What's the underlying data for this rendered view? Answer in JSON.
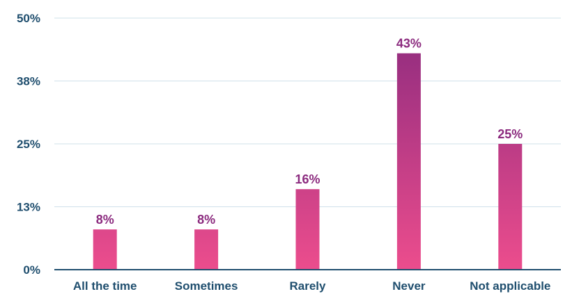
{
  "chart_data": {
    "type": "bar",
    "title": "",
    "xlabel": "",
    "ylabel": "",
    "categories": [
      "All the time",
      "Sometimes",
      "Rarely",
      "Never",
      "Not applicable"
    ],
    "values": [
      8,
      8,
      16,
      43,
      25
    ],
    "data_labels": [
      "8%",
      "8%",
      "16%",
      "43%",
      "25%"
    ],
    "y_ticks": [
      {
        "value": 0,
        "label": "0%"
      },
      {
        "value": 12.5,
        "label": "13%"
      },
      {
        "value": 25,
        "label": "25%"
      },
      {
        "value": 37.5,
        "label": "38%"
      },
      {
        "value": 50,
        "label": "50%"
      }
    ],
    "ylim": [
      0,
      50
    ],
    "grid": true,
    "legend": "none",
    "colors": {
      "bar_bottom": "#ec4d8d",
      "bar_top": "#8b2a7e",
      "data_label": "#8b2a7e",
      "axis_text": "#1f4e6e",
      "grid": "#cfe0ea"
    }
  }
}
